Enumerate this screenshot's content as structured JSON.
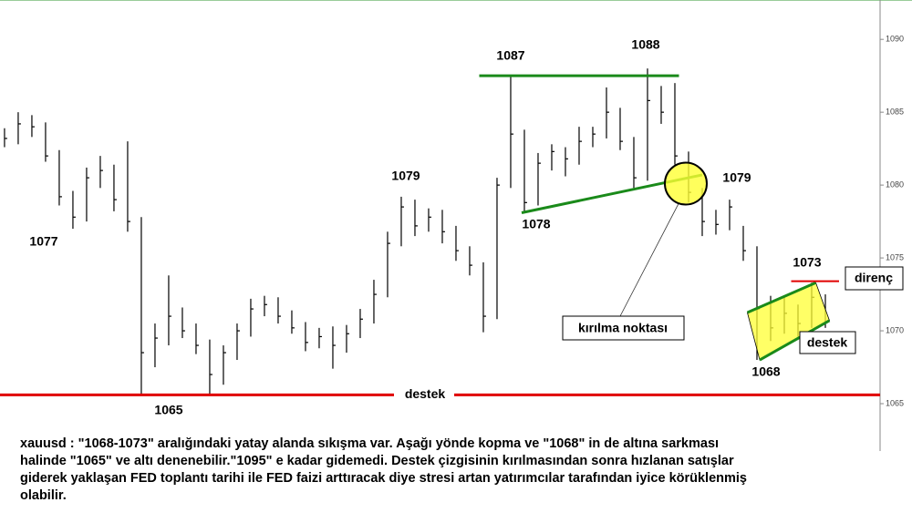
{
  "chart_data": {
    "type": "candlestick",
    "xlim": [
      -0.33,
      64
    ],
    "ylim": [
      1061.75,
      1092.7
    ],
    "yticks": [
      1065,
      1070,
      1075,
      1080,
      1085,
      1090
    ],
    "color": "#000000",
    "close": [
      1083.2,
      1084.2,
      1084.0,
      1082.0,
      1079.2,
      1077.8,
      1080.5,
      1081.0,
      1079.0,
      1077.5,
      1068.5,
      1069.5,
      1071.0,
      1070.0,
      1069.0,
      1067.0,
      1068.5,
      1070.0,
      1071.5,
      1071.8,
      1071.0,
      1070.2,
      1069.2,
      1069.6,
      1069.0,
      1069.8,
      1070.8,
      1072.5,
      1076.0,
      1078.5,
      1077.2,
      1077.8,
      1076.8,
      1075.5,
      1074.5,
      1071.0,
      1080.0,
      1083.5,
      1078.8,
      1081.5,
      1082.3,
      1081.8,
      1083.0,
      1083.5,
      1085.0,
      1083.0,
      1080.5,
      1085.8,
      1085.0,
      1082.0,
      1079.5,
      1077.5,
      1077.3,
      1078.5,
      1075.5,
      1071.5,
      1070.2,
      1071.2,
      1070.5,
      1072.3,
      1070.6
    ],
    "high": [
      1083.9,
      1085.0,
      1084.8,
      1084.3,
      1082.4,
      1079.6,
      1081.2,
      1082.0,
      1081.4,
      1083.0,
      1077.8,
      1070.5,
      1073.8,
      1071.6,
      1070.5,
      1069.4,
      1069.0,
      1070.5,
      1072.2,
      1072.4,
      1072.3,
      1071.4,
      1070.6,
      1070.2,
      1070.3,
      1070.4,
      1071.5,
      1073.5,
      1076.8,
      1079.2,
      1079.0,
      1078.4,
      1078.3,
      1077.2,
      1075.8,
      1074.7,
      1080.5,
      1087.5,
      1083.8,
      1082.2,
      1082.8,
      1082.6,
      1084.0,
      1084.0,
      1086.7,
      1085.3,
      1083.3,
      1088.0,
      1086.8,
      1087.0,
      1082.3,
      1079.8,
      1078.3,
      1079.0,
      1077.2,
      1075.8,
      1072.4,
      1072.3,
      1071.8,
      1073.3,
      1072.5
    ],
    "low": [
      1082.6,
      1082.8,
      1083.3,
      1081.6,
      1078.6,
      1077.0,
      1077.5,
      1079.8,
      1078.2,
      1076.8,
      1065.6,
      1067.5,
      1069.0,
      1069.5,
      1068.4,
      1065.6,
      1066.3,
      1068.0,
      1069.6,
      1071.0,
      1070.5,
      1069.8,
      1068.6,
      1068.8,
      1067.4,
      1068.5,
      1069.5,
      1070.5,
      1072.3,
      1075.8,
      1076.5,
      1076.8,
      1076.0,
      1074.8,
      1073.8,
      1069.9,
      1070.8,
      1079.8,
      1078.2,
      1078.6,
      1081.0,
      1080.6,
      1081.4,
      1082.6,
      1083.2,
      1082.4,
      1079.8,
      1080.3,
      1084.2,
      1081.4,
      1078.8,
      1076.5,
      1076.6,
      1076.9,
      1074.8,
      1068.0,
      1069.3,
      1069.8,
      1069.6,
      1070.2,
      1070.2
    ],
    "annotations": {
      "support": {
        "y": 1065.6,
        "label": "destek",
        "color": "#e00000"
      },
      "resistance": {
        "y": 1073.4,
        "x": [
          57.5,
          61
        ],
        "label": "direnç",
        "color": "#e00000"
      },
      "top_line": {
        "y": 1087.5,
        "x": [
          34.7,
          49.3
        ],
        "color": "#1a8a1a"
      },
      "trend_line": {
        "x": [
          37.8,
          51
        ],
        "y": [
          1078.1,
          1080.7
        ],
        "color": "#1a8a1a"
      },
      "channel_low": {
        "x": [
          55.2,
          60.3
        ],
        "y": [
          1068,
          1070.7
        ],
        "color": "#1a8a1a"
      },
      "channel_high": {
        "x": [
          54.3,
          59.3
        ],
        "y": [
          1071.25,
          1073.3
        ],
        "color": "#1a8a1a"
      },
      "channel_label": "destek",
      "breakpoint": {
        "x": 49.8,
        "y": 1080.1,
        "label": "kırılma noktası"
      },
      "price_labels": [
        "1077",
        "1065",
        "1079",
        "1087",
        "1088",
        "1078",
        "1079",
        "1073",
        "1068"
      ]
    },
    "note": [
      "xauusd : \"1068-1073\" aralığındaki yatay alanda sıkışma var. Aşağı yönde kopma ve \"1068\" in de altına sarkması",
      "halinde \"1065\" ve altı denenebilir.\"1095\" e kadar gidemedi. Destek çizgisinin kırılmasından sonra hızlanan satışlar",
      "giderek yaklaşan FED toplantı tarihi ile FED faizi arttıracak diye stresi artan yatırımcılar tarafından iyice körüklenmiş",
      "olabilir."
    ]
  }
}
